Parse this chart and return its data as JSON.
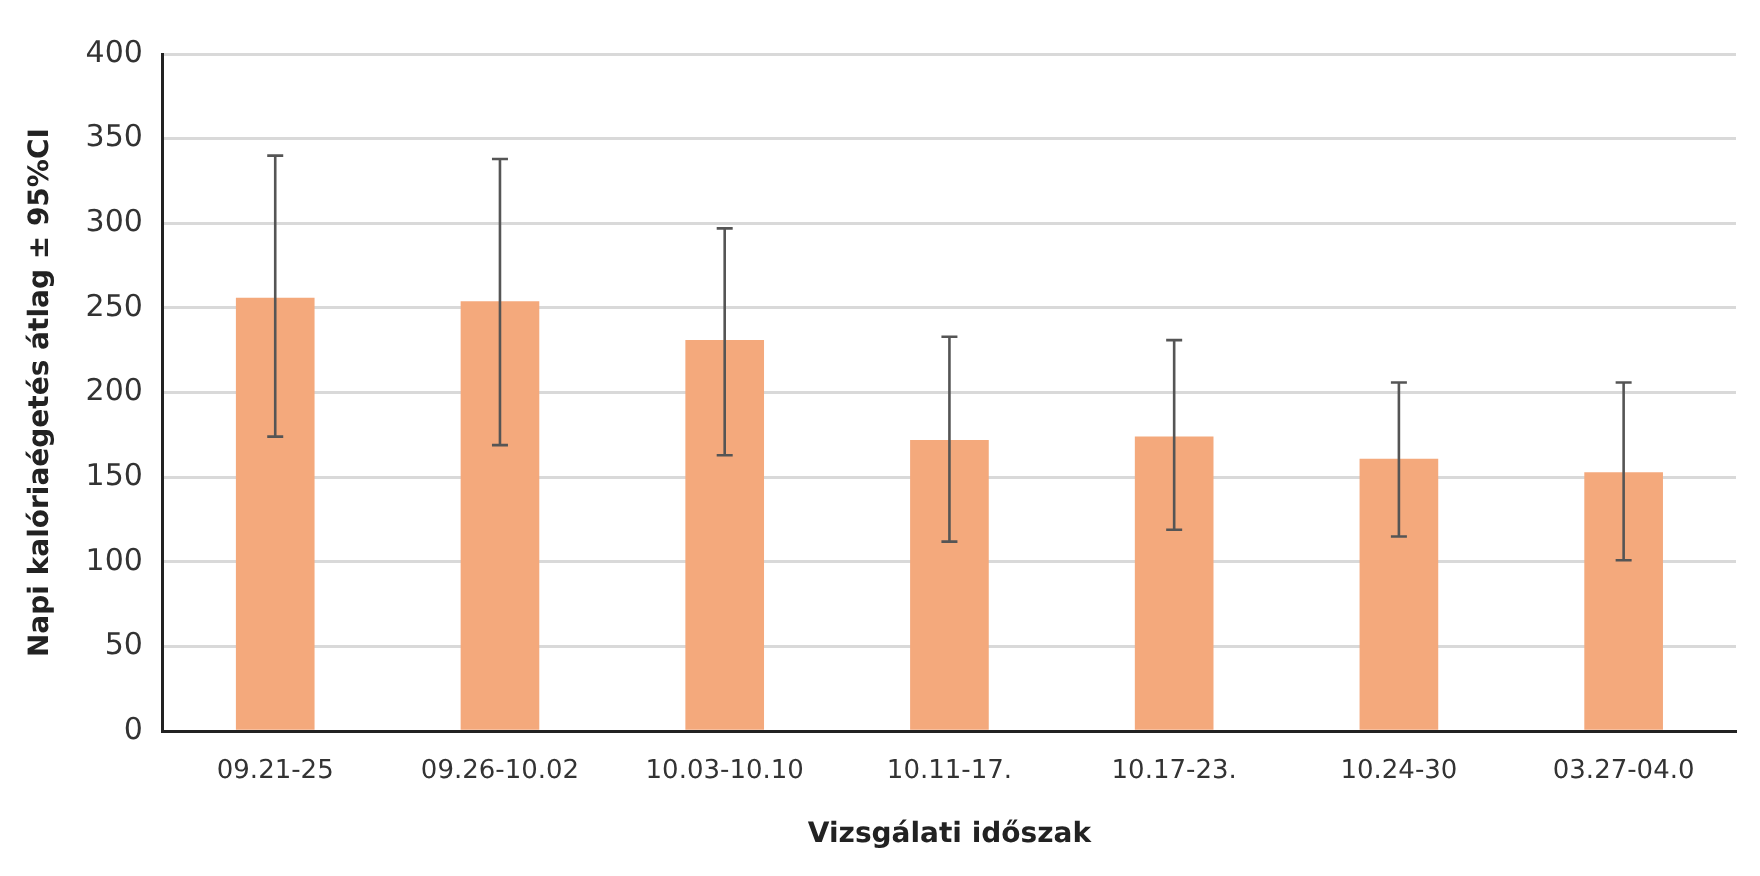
{
  "chart_data": {
    "type": "bar",
    "xlabel": "Vizsgálati időszak",
    "ylabel": "Napi kalóriaégetés átlag ± 95%CI",
    "categories": [
      "09.21-25",
      "09.26-10.02",
      "10.03-10.10",
      "10.11-17.",
      "10.17-23.",
      "10.24-30",
      "03.27-04.0"
    ],
    "values": [
      256,
      254,
      231,
      172,
      174,
      161,
      153
    ],
    "errors": [
      [
        174,
        340
      ],
      [
        169,
        338
      ],
      [
        163,
        297
      ],
      [
        112,
        233
      ],
      [
        119,
        231
      ],
      [
        115,
        206
      ],
      [
        101,
        206
      ]
    ],
    "color": "#f4a97c",
    "ylim": [
      0,
      400
    ],
    "yticks": [
      0,
      50,
      100,
      150,
      200,
      250,
      300,
      350,
      400
    ],
    "grid": "y",
    "legend": false
  }
}
